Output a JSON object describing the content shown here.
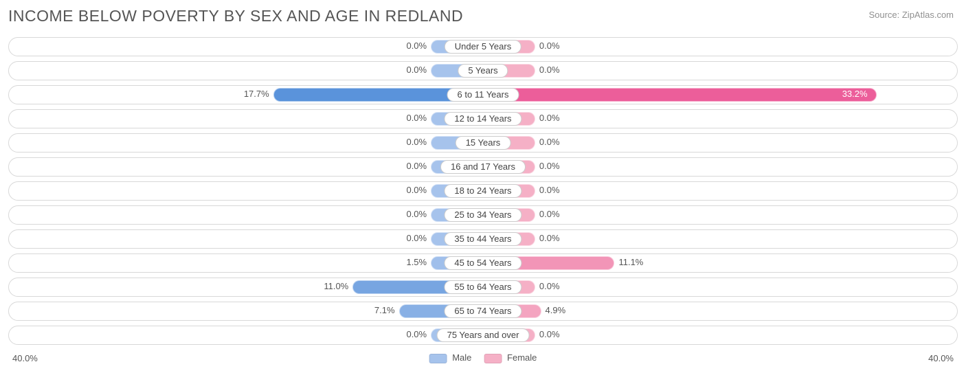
{
  "title": "INCOME BELOW POVERTY BY SEX AND AGE IN REDLAND",
  "source": "Source: ZipAtlas.com",
  "axis_max": 40.0,
  "axis_label_left": "40.0%",
  "axis_label_right": "40.0%",
  "min_bar_pct_visual": 5.5,
  "colors": {
    "male_low": "#a6c3ec",
    "male_high": "#5a93db",
    "female_low": "#f5b0c6",
    "female_high": "#ec5e9a",
    "row_border": "#d8d8d8",
    "pill_border": "#cccccc",
    "text": "#555555",
    "title_text": "#555555",
    "source_text": "#909090",
    "background": "#ffffff"
  },
  "legend": {
    "male": "Male",
    "female": "Female"
  },
  "categories": [
    {
      "label": "Under 5 Years",
      "male": 0.0,
      "female": 0.0,
      "male_label": "0.0%",
      "female_label": "0.0%",
      "female_inside": false
    },
    {
      "label": "5 Years",
      "male": 0.0,
      "female": 0.0,
      "male_label": "0.0%",
      "female_label": "0.0%",
      "female_inside": false
    },
    {
      "label": "6 to 11 Years",
      "male": 17.7,
      "female": 33.2,
      "male_label": "17.7%",
      "female_label": "33.2%",
      "female_inside": true
    },
    {
      "label": "12 to 14 Years",
      "male": 0.0,
      "female": 0.0,
      "male_label": "0.0%",
      "female_label": "0.0%",
      "female_inside": false
    },
    {
      "label": "15 Years",
      "male": 0.0,
      "female": 0.0,
      "male_label": "0.0%",
      "female_label": "0.0%",
      "female_inside": false
    },
    {
      "label": "16 and 17 Years",
      "male": 0.0,
      "female": 0.0,
      "male_label": "0.0%",
      "female_label": "0.0%",
      "female_inside": false
    },
    {
      "label": "18 to 24 Years",
      "male": 0.0,
      "female": 0.0,
      "male_label": "0.0%",
      "female_label": "0.0%",
      "female_inside": false
    },
    {
      "label": "25 to 34 Years",
      "male": 0.0,
      "female": 0.0,
      "male_label": "0.0%",
      "female_label": "0.0%",
      "female_inside": false
    },
    {
      "label": "35 to 44 Years",
      "male": 0.0,
      "female": 0.0,
      "male_label": "0.0%",
      "female_label": "0.0%",
      "female_inside": false
    },
    {
      "label": "45 to 54 Years",
      "male": 1.5,
      "female": 11.1,
      "male_label": "1.5%",
      "female_label": "11.1%",
      "female_inside": false
    },
    {
      "label": "55 to 64 Years",
      "male": 11.0,
      "female": 0.0,
      "male_label": "11.0%",
      "female_label": "0.0%",
      "female_inside": false
    },
    {
      "label": "65 to 74 Years",
      "male": 7.1,
      "female": 4.9,
      "male_label": "7.1%",
      "female_label": "4.9%",
      "female_inside": false
    },
    {
      "label": "75 Years and over",
      "male": 0.0,
      "female": 0.0,
      "male_label": "0.0%",
      "female_label": "0.0%",
      "female_inside": false
    }
  ]
}
